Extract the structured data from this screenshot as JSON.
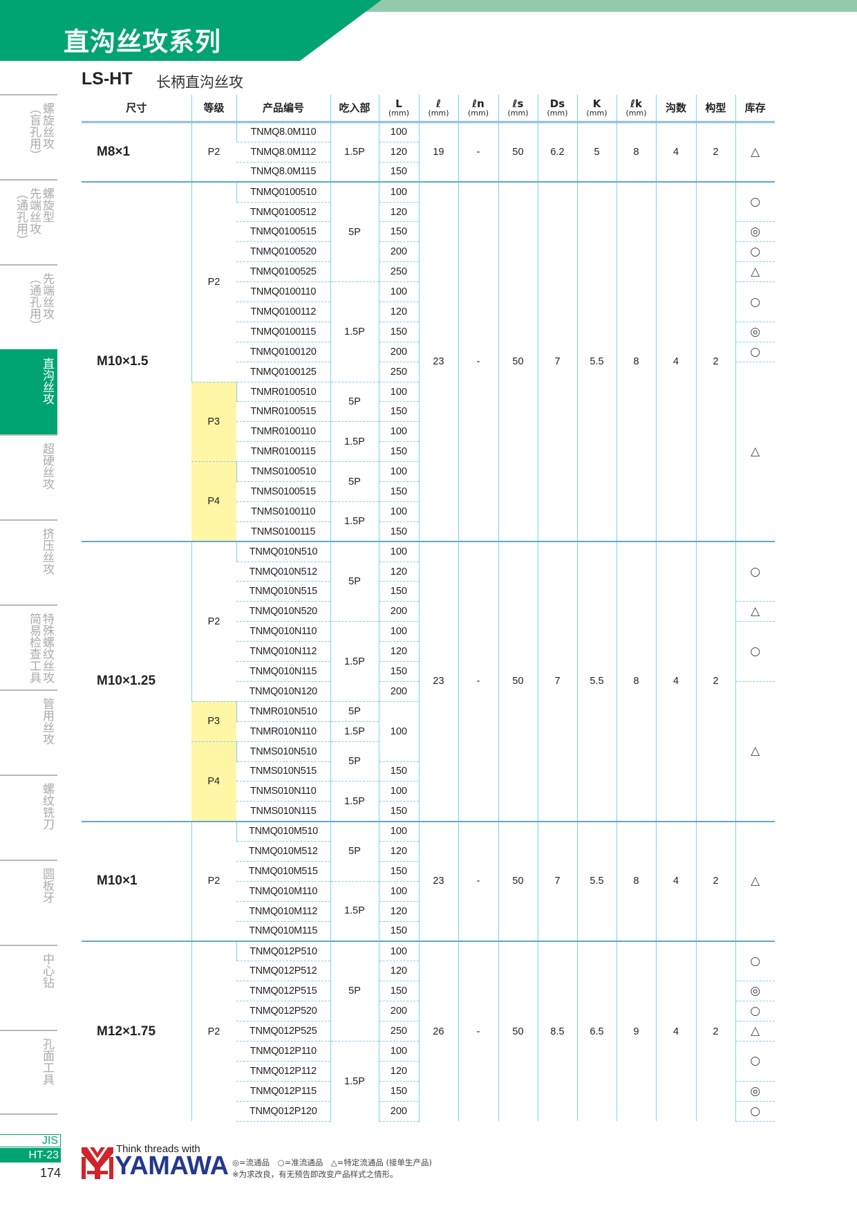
{
  "header": {
    "title": "直沟丝攻系列",
    "series_code": "LS-HT",
    "series_name": "长柄直沟丝攻",
    "brand_color": "#00a472"
  },
  "sidebar": {
    "items": [
      {
        "label": "螺旋丝攻\n（盲孔用）",
        "active": false
      },
      {
        "label": "螺旋型\n先端丝攻\n（通孔用）",
        "active": false
      },
      {
        "label": "先端丝攻\n（通孔用）",
        "active": false
      },
      {
        "label": "直沟丝攻",
        "active": true
      },
      {
        "label": "超硬丝攻",
        "active": false
      },
      {
        "label": "挤压丝攻",
        "active": false
      },
      {
        "label": "特殊螺纹丝攻\n简易检查工具",
        "active": false
      },
      {
        "label": "管用丝攻",
        "active": false
      },
      {
        "label": "螺纹铣刀",
        "active": false
      },
      {
        "label": "圆板牙",
        "active": false
      },
      {
        "label": "中心钻",
        "active": false
      },
      {
        "label": "孔面工具",
        "active": false
      }
    ]
  },
  "table": {
    "columns": [
      {
        "label": "尺寸"
      },
      {
        "label": "等级"
      },
      {
        "label": "产品编号"
      },
      {
        "label": "吃入部"
      },
      {
        "label": "L",
        "unit": "(mm)"
      },
      {
        "label": "ℓ",
        "unit": "(mm)"
      },
      {
        "label": "ℓn",
        "unit": "(mm)"
      },
      {
        "label": "ℓs",
        "unit": "(mm)"
      },
      {
        "label": "Ds",
        "unit": "(mm)"
      },
      {
        "label": "K",
        "unit": "(mm)"
      },
      {
        "label": "ℓk",
        "unit": "(mm)"
      },
      {
        "label": "沟数"
      },
      {
        "label": "构型"
      },
      {
        "label": "库存"
      }
    ],
    "sections": [
      {
        "size": "M8×1",
        "codes": [
          "TNMQ8.0M110",
          "TNMQ8.0M112",
          "TNMQ8.0M115"
        ],
        "grades": [
          {
            "value": "P2",
            "rows": 3,
            "highlight": false
          }
        ],
        "entry": [
          {
            "value": "1.5P",
            "rows": 3
          }
        ],
        "L": [
          {
            "value": "100",
            "rows": 1
          },
          {
            "value": "120",
            "rows": 1
          },
          {
            "value": "150",
            "rows": 1
          }
        ],
        "dims": [
          "19",
          "-",
          "50",
          "6.2",
          "5",
          "8",
          "4",
          "2"
        ],
        "stock": [
          {
            "value": "△",
            "rows": 3
          }
        ]
      },
      {
        "size": "M10×1.5",
        "codes": [
          "TNMQ0100510",
          "TNMQ0100512",
          "TNMQ0100515",
          "TNMQ0100520",
          "TNMQ0100525",
          "TNMQ0100110",
          "TNMQ0100112",
          "TNMQ0100115",
          "TNMQ0100120",
          "TNMQ0100125",
          "TNMR0100510",
          "TNMR0100515",
          "TNMR0100110",
          "TNMR0100115",
          "TNMS0100510",
          "TNMS0100515",
          "TNMS0100110",
          "TNMS0100115"
        ],
        "grades": [
          {
            "value": "P2",
            "rows": 10,
            "highlight": false
          },
          {
            "value": "P3",
            "rows": 4,
            "highlight": true
          },
          {
            "value": "P4",
            "rows": 4,
            "highlight": true
          }
        ],
        "entry": [
          {
            "value": "5P",
            "rows": 5
          },
          {
            "value": "1.5P",
            "rows": 5
          },
          {
            "value": "5P",
            "rows": 2
          },
          {
            "value": "1.5P",
            "rows": 2
          },
          {
            "value": "5P",
            "rows": 2
          },
          {
            "value": "1.5P",
            "rows": 2
          }
        ],
        "L": [
          {
            "value": "100",
            "rows": 1
          },
          {
            "value": "120",
            "rows": 1
          },
          {
            "value": "150",
            "rows": 1
          },
          {
            "value": "200",
            "rows": 1
          },
          {
            "value": "250",
            "rows": 1
          },
          {
            "value": "100",
            "rows": 1
          },
          {
            "value": "120",
            "rows": 1
          },
          {
            "value": "150",
            "rows": 1
          },
          {
            "value": "200",
            "rows": 1
          },
          {
            "value": "250",
            "rows": 1
          },
          {
            "value": "100",
            "rows": 1
          },
          {
            "value": "150",
            "rows": 1
          },
          {
            "value": "100",
            "rows": 1
          },
          {
            "value": "150",
            "rows": 1
          },
          {
            "value": "100",
            "rows": 1
          },
          {
            "value": "150",
            "rows": 1
          },
          {
            "value": "100",
            "rows": 1
          },
          {
            "value": "150",
            "rows": 1
          }
        ],
        "dims": [
          "23",
          "-",
          "50",
          "7",
          "5.5",
          "8",
          "4",
          "2"
        ],
        "stock": [
          {
            "value": "○",
            "rows": 2
          },
          {
            "value": "◎",
            "rows": 1
          },
          {
            "value": "○",
            "rows": 1
          },
          {
            "value": "△",
            "rows": 1
          },
          {
            "value": "○",
            "rows": 2
          },
          {
            "value": "◎",
            "rows": 1
          },
          {
            "value": "○",
            "rows": 1
          },
          {
            "value": "△",
            "rows": 9
          }
        ]
      },
      {
        "size": "M10×1.25",
        "codes": [
          "TNMQ010N510",
          "TNMQ010N512",
          "TNMQ010N515",
          "TNMQ010N520",
          "TNMQ010N110",
          "TNMQ010N112",
          "TNMQ010N115",
          "TNMQ010N120",
          "TNMR010N510",
          "TNMR010N110",
          "TNMS010N510",
          "TNMS010N515",
          "TNMS010N110",
          "TNMS010N115"
        ],
        "grades": [
          {
            "value": "P2",
            "rows": 8,
            "highlight": false
          },
          {
            "value": "P3",
            "rows": 2,
            "highlight": true
          },
          {
            "value": "P4",
            "rows": 4,
            "highlight": true
          }
        ],
        "entry": [
          {
            "value": "5P",
            "rows": 4
          },
          {
            "value": "1.5P",
            "rows": 4
          },
          {
            "value": "5P",
            "rows": 1
          },
          {
            "value": "1.5P",
            "rows": 1
          },
          {
            "value": "5P",
            "rows": 2
          },
          {
            "value": "1.5P",
            "rows": 2
          }
        ],
        "L": [
          {
            "value": "100",
            "rows": 1
          },
          {
            "value": "120",
            "rows": 1
          },
          {
            "value": "150",
            "rows": 1
          },
          {
            "value": "200",
            "rows": 1
          },
          {
            "value": "100",
            "rows": 1
          },
          {
            "value": "120",
            "rows": 1
          },
          {
            "value": "150",
            "rows": 1
          },
          {
            "value": "200",
            "rows": 1
          },
          {
            "value": "100",
            "rows": 3
          },
          {
            "value": "150",
            "rows": 1
          },
          {
            "value": "100",
            "rows": 1
          },
          {
            "value": "150",
            "rows": 1
          }
        ],
        "dims": [
          "23",
          "-",
          "50",
          "7",
          "5.5",
          "8",
          "4",
          "2"
        ],
        "stock": [
          {
            "value": "○",
            "rows": 3
          },
          {
            "value": "△",
            "rows": 1
          },
          {
            "value": "○",
            "rows": 3
          },
          {
            "value": "△",
            "rows": 7
          }
        ]
      },
      {
        "size": "M10×1",
        "codes": [
          "TNMQ010M510",
          "TNMQ010M512",
          "TNMQ010M515",
          "TNMQ010M110",
          "TNMQ010M112",
          "TNMQ010M115"
        ],
        "grades": [
          {
            "value": "P2",
            "rows": 6,
            "highlight": false
          }
        ],
        "entry": [
          {
            "value": "5P",
            "rows": 3
          },
          {
            "value": "1.5P",
            "rows": 3
          }
        ],
        "L": [
          {
            "value": "100",
            "rows": 1
          },
          {
            "value": "120",
            "rows": 1
          },
          {
            "value": "150",
            "rows": 1
          },
          {
            "value": "100",
            "rows": 1
          },
          {
            "value": "120",
            "rows": 1
          },
          {
            "value": "150",
            "rows": 1
          }
        ],
        "dims": [
          "23",
          "-",
          "50",
          "7",
          "5.5",
          "8",
          "4",
          "2"
        ],
        "stock": [
          {
            "value": "△",
            "rows": 6
          }
        ]
      },
      {
        "size": "M12×1.75",
        "codes": [
          "TNMQ012P510",
          "TNMQ012P512",
          "TNMQ012P515",
          "TNMQ012P520",
          "TNMQ012P525",
          "TNMQ012P110",
          "TNMQ012P112",
          "TNMQ012P115",
          "TNMQ012P120"
        ],
        "grades": [
          {
            "value": "P2",
            "rows": 9,
            "highlight": false
          }
        ],
        "entry": [
          {
            "value": "5P",
            "rows": 5
          },
          {
            "value": "1.5P",
            "rows": 4
          }
        ],
        "L": [
          {
            "value": "100",
            "rows": 1
          },
          {
            "value": "120",
            "rows": 1
          },
          {
            "value": "150",
            "rows": 1
          },
          {
            "value": "200",
            "rows": 1
          },
          {
            "value": "250",
            "rows": 1
          },
          {
            "value": "100",
            "rows": 1
          },
          {
            "value": "120",
            "rows": 1
          },
          {
            "value": "150",
            "rows": 1
          },
          {
            "value": "200",
            "rows": 1
          }
        ],
        "dims": [
          "26",
          "-",
          "50",
          "8.5",
          "6.5",
          "9",
          "4",
          "2"
        ],
        "stock": [
          {
            "value": "○",
            "rows": 2
          },
          {
            "value": "◎",
            "rows": 1
          },
          {
            "value": "○",
            "rows": 1
          },
          {
            "value": "△",
            "rows": 1
          },
          {
            "value": "○",
            "rows": 2
          },
          {
            "value": "◎",
            "rows": 1
          },
          {
            "value": "○",
            "rows": 1
          }
        ]
      }
    ]
  },
  "footer": {
    "standard": "JIS",
    "page_code": "HT-23",
    "page_number": "174",
    "logo_tagline": "Think threads with",
    "logo_word": "YAMAWA",
    "legend": "◎=流通品　○=准流通品　△=特定流通品 (接单生产品)",
    "note": "※为求改良，有无预告即改变产品样式之情形。",
    "logo_red": "#d2232a",
    "logo_blue": "#24388e"
  }
}
